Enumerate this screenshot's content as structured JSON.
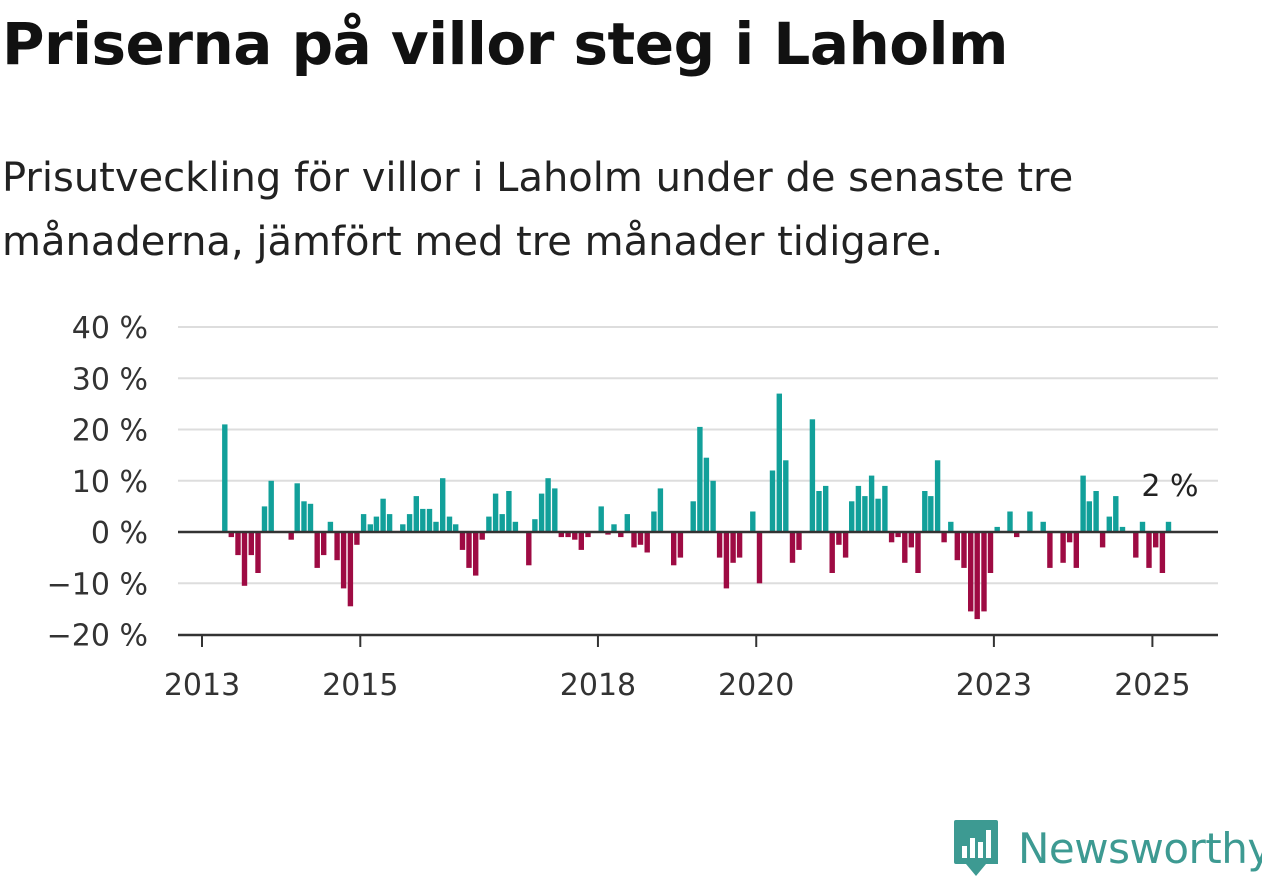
{
  "title": "Priserna på villor steg i Laholm",
  "subtitle": "Prisutveckling för villor i Laholm under de senaste tre månaderna, jämfört med tre månader tidigare.",
  "brand": {
    "name": "Newsworthy",
    "icon": "newsworthy-logo-icon",
    "color": "#3d9a92"
  },
  "colors": {
    "positive": "#12a09a",
    "negative": "#9e0b43",
    "grid": "#dddddd",
    "axis": "#333333"
  },
  "chart_data": {
    "type": "bar",
    "title": "Priserna på villor steg i Laholm",
    "ylim": [
      -20,
      40
    ],
    "y_ticks": [
      {
        "value": 40,
        "label": "40 %"
      },
      {
        "value": 30,
        "label": "30 %"
      },
      {
        "value": 20,
        "label": "20 %"
      },
      {
        "value": 10,
        "label": "10 %"
      },
      {
        "value": 0,
        "label": "0 %"
      },
      {
        "value": -10,
        "label": "−10 %"
      },
      {
        "value": -20,
        "label": "−20 %"
      }
    ],
    "x_ticks": [
      "2013",
      "2015",
      "2018",
      "2020",
      "2023",
      "2025"
    ],
    "grid": true,
    "start": "2013-01",
    "frequency": "monthly",
    "unit": "%",
    "last_value_label": "2 %",
    "values": [
      null,
      null,
      null,
      21.0,
      -1.0,
      -4.5,
      -10.5,
      -4.5,
      -8.0,
      5.0,
      10.0,
      null,
      null,
      -1.5,
      9.5,
      6.0,
      5.5,
      -7.0,
      -4.5,
      2.0,
      -5.5,
      -11.0,
      -14.5,
      -2.5,
      3.5,
      1.5,
      3.0,
      6.5,
      3.5,
      null,
      1.5,
      3.5,
      7.0,
      4.5,
      4.5,
      2.0,
      10.5,
      3.0,
      1.5,
      -3.5,
      -7.0,
      -8.5,
      -1.5,
      3.0,
      7.5,
      3.5,
      8.0,
      2.0,
      null,
      -6.5,
      2.5,
      7.5,
      10.5,
      8.5,
      -1.0,
      -1.0,
      -1.5,
      -3.5,
      -1.0,
      null,
      5.0,
      -0.5,
      1.5,
      -1.0,
      3.5,
      -3.0,
      -2.5,
      -4.0,
      4.0,
      8.5,
      null,
      -6.5,
      -5.0,
      null,
      6.0,
      20.5,
      14.5,
      10.0,
      -5.0,
      -11.0,
      -6.0,
      -5.0,
      null,
      4.0,
      -10.0,
      null,
      12.0,
      27.0,
      14.0,
      -6.0,
      -3.5,
      null,
      22.0,
      8.0,
      9.0,
      -8.0,
      -2.5,
      -5.0,
      6.0,
      9.0,
      7.0,
      11.0,
      6.5,
      9.0,
      -2.0,
      -1.0,
      -6.0,
      -3.0,
      -8.0,
      8.0,
      7.0,
      14.0,
      -2.0,
      2.0,
      -5.5,
      -7.0,
      -15.5,
      -17.0,
      -15.5,
      -8.0,
      1.0,
      null,
      4.0,
      -1.0,
      null,
      4.0,
      null,
      2.0,
      -7.0,
      null,
      -6.0,
      -2.0,
      -7.0,
      11.0,
      6.0,
      8.0,
      -3.0,
      3.0,
      7.0,
      1.0,
      null,
      -5.0,
      2.0,
      -7.0,
      -3.0,
      -8.0,
      2.0
    ]
  }
}
